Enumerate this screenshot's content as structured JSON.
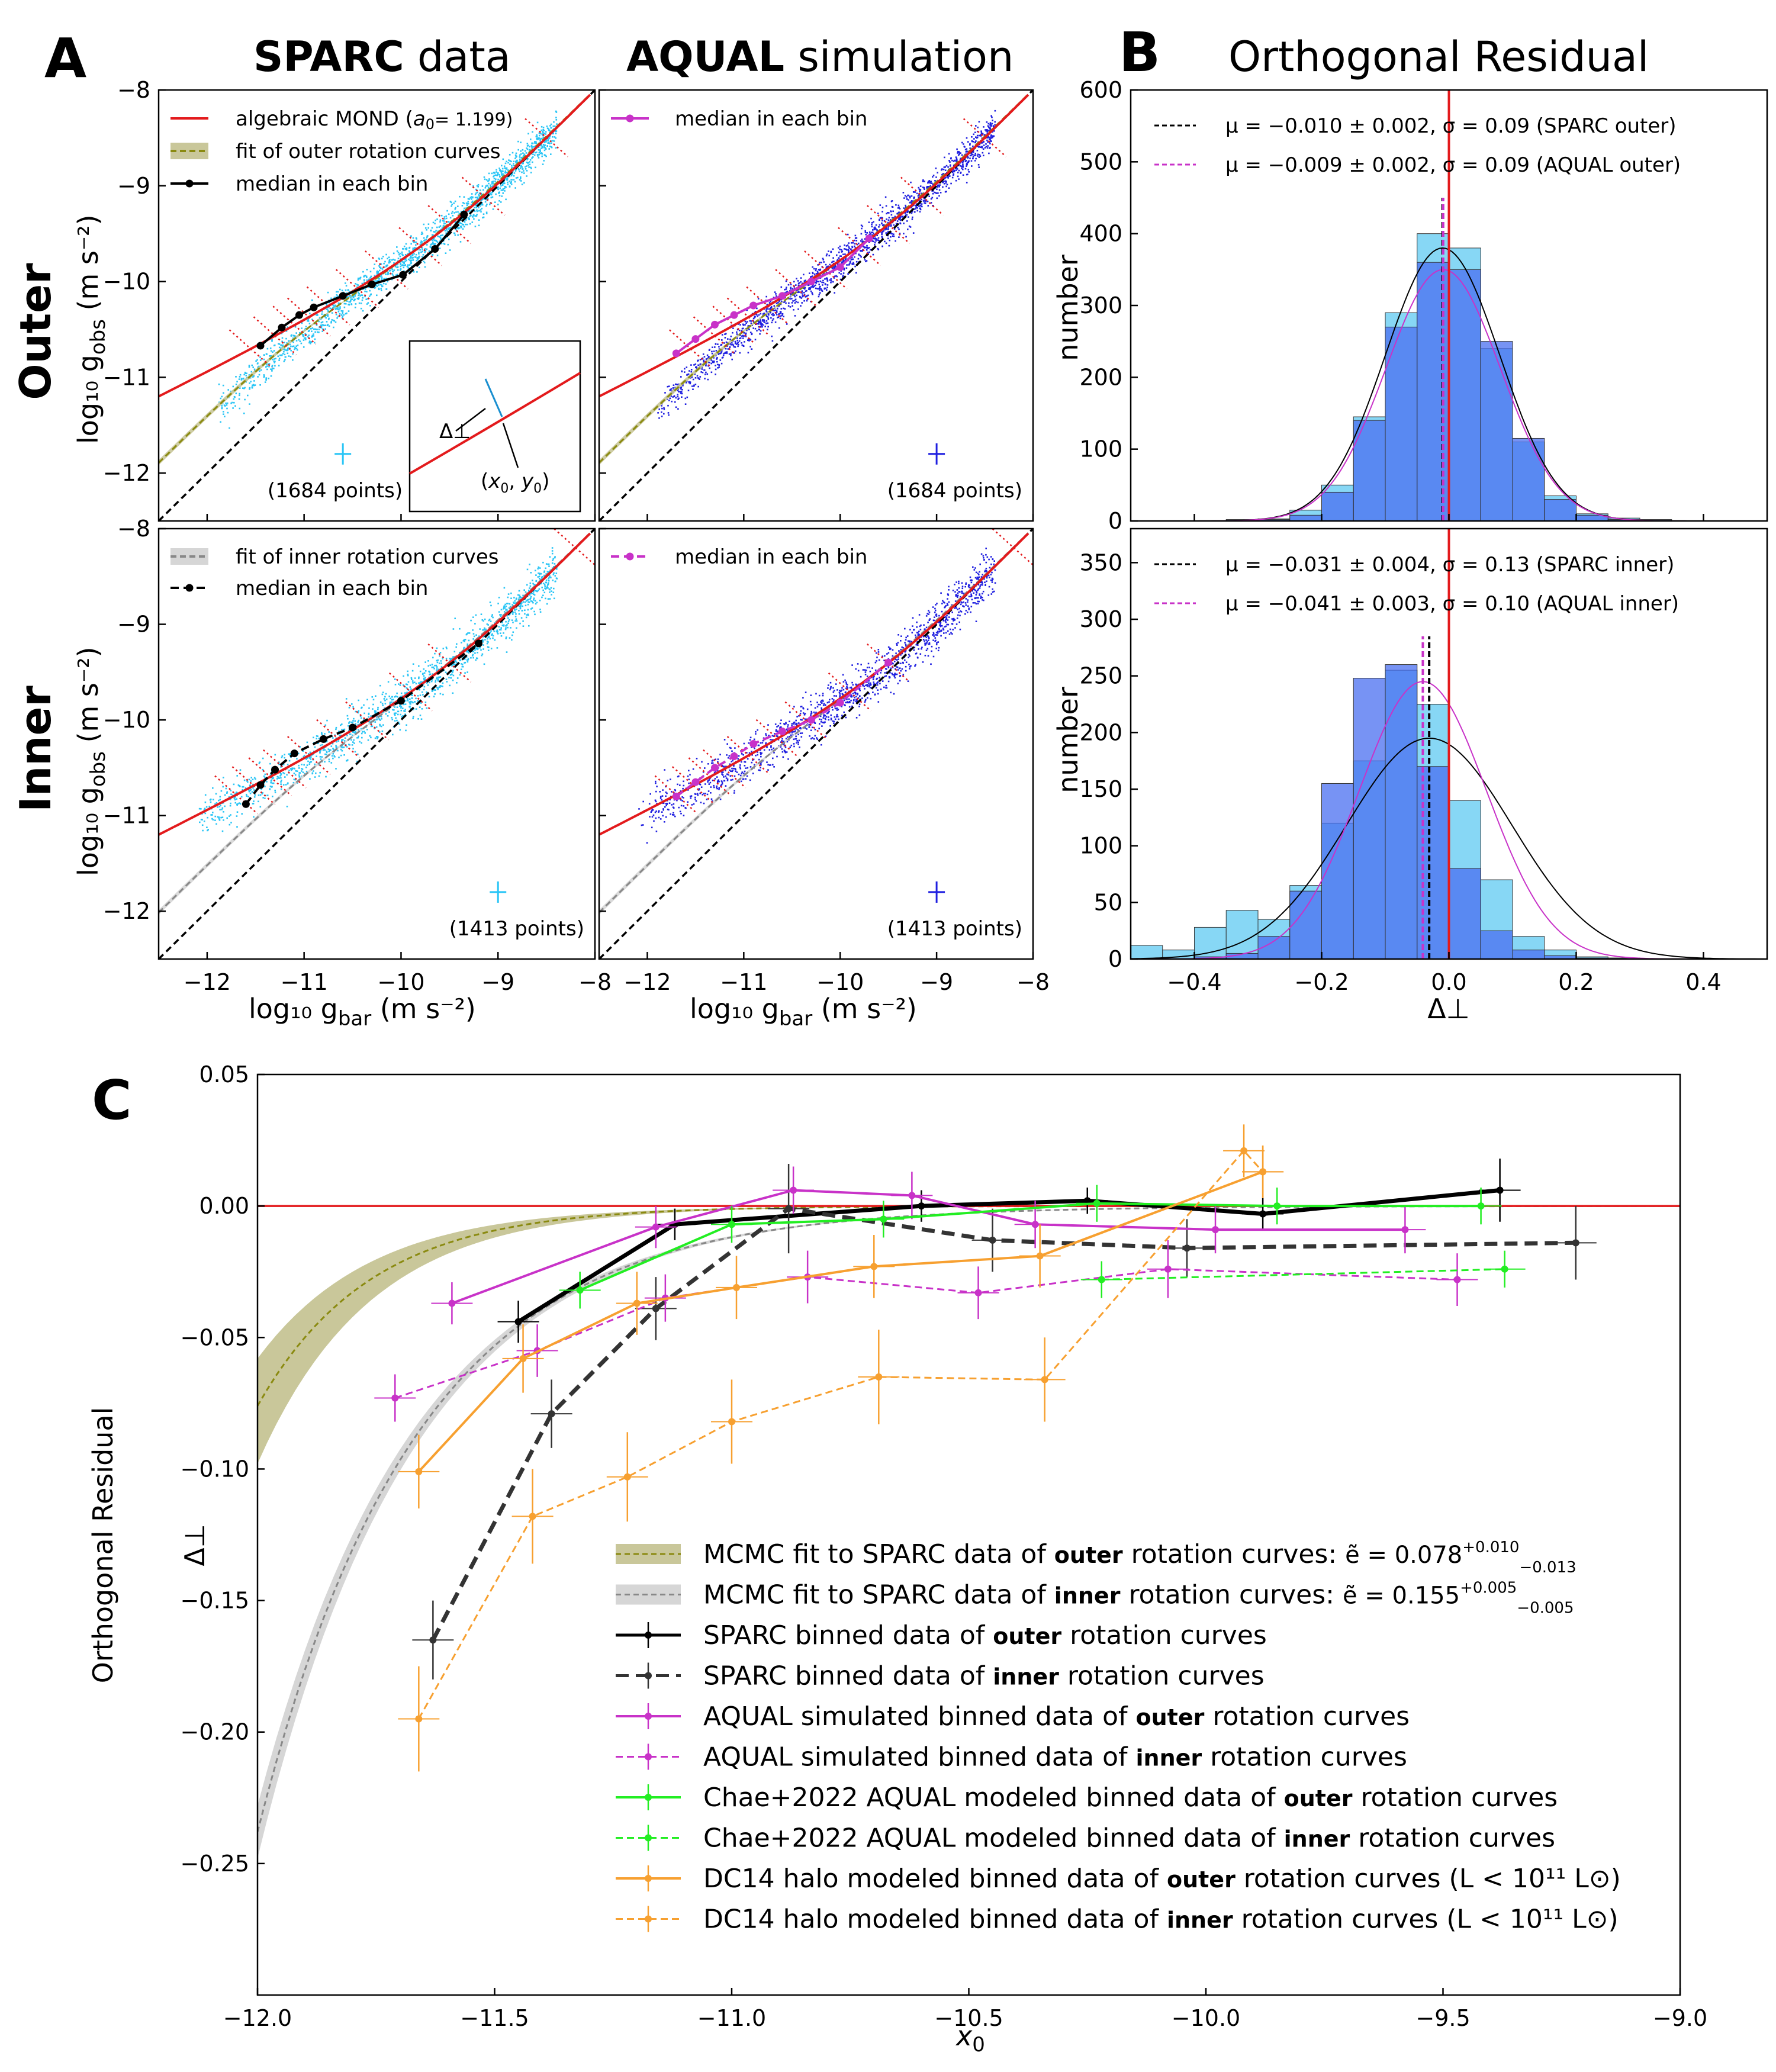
{
  "figure": {
    "panel_labels": [
      "A",
      "B",
      "C"
    ],
    "column_titles": {
      "sparc_bold": "SPARC",
      "sparc_rest": " data",
      "aqual_bold": "AQUAL",
      "aqual_rest": " simulation"
    },
    "row_titles": [
      "Outer",
      "Inner"
    ],
    "panelB_title": "Orthogonal Residual"
  },
  "colors": {
    "mond": "#e31a1c",
    "sparc_points": "#29c5f6",
    "aqual_points": "#1f1fe0",
    "median_aqual": "#c832c8",
    "outer_fit": "#8a8a10",
    "outer_band": "#c9c79a",
    "inner_fit": "#888888",
    "inner_band": "#d6d6d6",
    "hist_sparc": "#87d7f5",
    "hist_aqual": "#4a6ff0",
    "chae": "#22ee22",
    "dc14": "#f7a030",
    "black": "#000000"
  },
  "chart_data": [
    {
      "id": "A",
      "type": "scatter",
      "title": "SPARC data / AQUAL simulation (Outer & Inner)",
      "xlabel": "log10 g_bar (m s^-2)",
      "ylabel": "log10 g_obs (m s^-2)",
      "xlim": [
        -12.5,
        -8.0
      ],
      "ylim": [
        -12.5,
        -8.0
      ],
      "xticks": [
        "-12",
        "-11",
        "-10",
        "-9",
        "-8"
      ],
      "yticks": [
        "-8",
        "-9",
        "-10",
        "-11",
        "-12"
      ],
      "legend_outer_sparc": [
        "algebraic MOND (a0 = 1.199)",
        "fit of outer rotation curves",
        "median in each bin"
      ],
      "legend_inner_sparc": [
        "fit of inner rotation curves",
        "median in each bin"
      ],
      "legend_aqual": [
        "median in each bin"
      ],
      "point_counts": {
        "outer": "(1684 points)",
        "inner": "(1413 points)"
      },
      "inset_labels": [
        "Δ⊥",
        "(x0, y0)"
      ],
      "median_outer_sparc": {
        "x": [
          -11.45,
          -11.23,
          -11.05,
          -10.9,
          -10.6,
          -10.3,
          -9.98,
          -9.65,
          -9.35
        ],
        "y": [
          -10.67,
          -10.48,
          -10.35,
          -10.27,
          -10.15,
          -10.03,
          -9.93,
          -9.66,
          -9.3
        ]
      },
      "median_inner_sparc": {
        "x": [
          -11.6,
          -11.45,
          -11.3,
          -11.1,
          -10.8,
          -10.5,
          -10.0,
          -9.2
        ],
        "y": [
          -10.88,
          -10.68,
          -10.52,
          -10.35,
          -10.2,
          -10.08,
          -9.8,
          -9.2
        ]
      },
      "median_outer_aqual": {
        "x": [
          -11.7,
          -11.5,
          -11.3,
          -11.1,
          -10.9,
          -10.6,
          -10.3,
          -10.0,
          -9.7
        ],
        "y": [
          -10.75,
          -10.6,
          -10.45,
          -10.35,
          -10.25,
          -10.15,
          -10.0,
          -9.85,
          -9.55
        ]
      },
      "median_inner_aqual": {
        "x": [
          -11.7,
          -11.5,
          -11.3,
          -11.1,
          -10.9,
          -10.6,
          -10.3,
          -10.0,
          -9.5
        ],
        "y": [
          -10.8,
          -10.65,
          -10.5,
          -10.38,
          -10.25,
          -10.12,
          -10.0,
          -9.82,
          -9.4
        ]
      }
    },
    {
      "id": "B_outer",
      "type": "bar",
      "xlabel": "Δ⊥",
      "ylabel": "number",
      "xlim": [
        -0.5,
        0.5
      ],
      "ylim": [
        0,
        600
      ],
      "yticks": [
        "0",
        "100",
        "200",
        "300",
        "400",
        "500",
        "600"
      ],
      "legend": [
        "μ = −0.010 ± 0.002, σ = 0.09 (SPARC outer)",
        "μ = −0.009 ± 0.002, σ = 0.09 (AQUAL outer)"
      ],
      "bin_edges_start": -0.4,
      "bin_width": 0.05,
      "series": [
        {
          "name": "SPARC outer",
          "values": [
            0,
            2,
            3,
            15,
            50,
            145,
            290,
            400,
            380,
            240,
            110,
            35,
            10,
            4,
            2,
            0
          ]
        },
        {
          "name": "AQUAL outer",
          "values": [
            0,
            1,
            2,
            8,
            40,
            140,
            270,
            360,
            350,
            250,
            115,
            30,
            8,
            2,
            1,
            0
          ]
        }
      ],
      "gaussian": {
        "mu": -0.01,
        "sigma": 0.09,
        "amp": 380
      },
      "gaussian2": {
        "mu": -0.009,
        "sigma": 0.09,
        "amp": 350
      }
    },
    {
      "id": "B_inner",
      "type": "bar",
      "xlabel": "Δ⊥",
      "ylabel": "number",
      "xlim": [
        -0.5,
        0.5
      ],
      "ylim": [
        0,
        380
      ],
      "xticks": [
        "−0.4",
        "−0.2",
        "0.0",
        "0.2",
        "0.4"
      ],
      "yticks": [
        "0",
        "50",
        "100",
        "150",
        "200",
        "250",
        "300",
        "350"
      ],
      "legend": [
        "μ = −0.031 ± 0.004, σ = 0.13 (SPARC inner)",
        "μ = −0.041 ± 0.003, σ = 0.10 (AQUAL inner)"
      ],
      "bin_start": -0.5,
      "bin_width": 0.05,
      "series": [
        {
          "name": "SPARC inner",
          "values": [
            12,
            8,
            28,
            43,
            35,
            65,
            120,
            175,
            255,
            225,
            140,
            70,
            20,
            8,
            2,
            1,
            0,
            0,
            0,
            0
          ]
        },
        {
          "name": "AQUAL inner",
          "values": [
            0,
            0,
            2,
            5,
            20,
            60,
            155,
            248,
            260,
            170,
            80,
            25,
            8,
            3,
            1,
            0,
            0,
            0,
            0,
            0
          ]
        }
      ],
      "gaussian": {
        "mu": -0.031,
        "sigma": 0.13,
        "amp": 195
      },
      "gaussian2": {
        "mu": -0.041,
        "sigma": 0.1,
        "amp": 245
      }
    },
    {
      "id": "C",
      "type": "line",
      "xlabel": "x0",
      "ylabel": "Orthogonal Residual Δ⊥",
      "xlim": [
        -12.0,
        -9.0
      ],
      "ylim": [
        -0.3,
        0.05
      ],
      "xticks": [
        "−12.0",
        "−11.5",
        "−11.0",
        "−10.5",
        "−10.0",
        "−9.5",
        "−9.0"
      ],
      "yticks": [
        "0.05",
        "0.00",
        "−0.05",
        "−0.10",
        "−0.15",
        "−0.20",
        "−0.25"
      ],
      "legend": [
        "MCMC fit to SPARC data of outer rotation curves: ẽ = 0.078 (+0.010/−0.013)",
        "MCMC fit to SPARC data of inner rotation curves: ẽ = 0.155 (+0.005/−0.005)",
        "SPARC binned data of outer rotation curves",
        "SPARC binned data of inner rotation curves",
        "AQUAL simulated binned data of outer rotation curves",
        "AQUAL simulated binned data of inner rotation curves",
        "Chae+2022 AQUAL modeled binned data of outer rotation curves",
        "Chae+2022 AQUAL modeled binned data of inner rotation curves",
        "DC14 halo modeled binned data of outer rotation curves (L < 10^11 L⊙)",
        "DC14 halo modeled binned data of inner rotation curves (L < 10^11 L⊙)"
      ],
      "series": [
        {
          "name": "SPARC outer",
          "x": [
            -11.45,
            -11.12,
            -10.6,
            -10.25,
            -9.88,
            -9.38
          ],
          "y": [
            -0.044,
            -0.007,
            0.0,
            0.002,
            -0.003,
            0.006
          ],
          "err": [
            0.008,
            0.006,
            0.006,
            0.005,
            0.006,
            0.012
          ]
        },
        {
          "name": "SPARC inner",
          "x": [
            -11.63,
            -11.38,
            -11.16,
            -10.88,
            -10.45,
            -10.04,
            -9.22
          ],
          "y": [
            -0.165,
            -0.079,
            -0.039,
            -0.001,
            -0.013,
            -0.016,
            -0.014
          ],
          "err": [
            0.015,
            0.013,
            0.012,
            0.017,
            0.012,
            0.011,
            0.014
          ]
        },
        {
          "name": "AQUAL outer",
          "x": [
            -11.59,
            -11.16,
            -10.87,
            -10.62,
            -10.36,
            -9.98,
            -9.58
          ],
          "y": [
            -0.037,
            -0.008,
            0.006,
            0.004,
            -0.007,
            -0.009,
            -0.009
          ],
          "err": [
            0.008,
            0.008,
            0.009,
            0.009,
            0.009,
            0.009,
            0.009
          ]
        },
        {
          "name": "AQUAL inner",
          "x": [
            -11.71,
            -11.41,
            -11.14,
            -10.84,
            -10.48,
            -10.08,
            -9.47
          ],
          "y": [
            -0.073,
            -0.055,
            -0.035,
            -0.027,
            -0.033,
            -0.024,
            -0.028
          ],
          "err": [
            0.009,
            0.01,
            0.009,
            0.01,
            0.01,
            0.011,
            0.01
          ]
        },
        {
          "name": "Chae outer",
          "x": [
            -11.32,
            -11.0,
            -10.68,
            -10.23,
            -9.85,
            -9.42
          ],
          "y": [
            -0.032,
            -0.007,
            -0.005,
            0.001,
            0.0,
            0.0
          ],
          "err": [
            0.007,
            0.007,
            0.007,
            0.007,
            0.007,
            0.007
          ]
        },
        {
          "name": "Chae inner",
          "x": [
            -10.22,
            -9.37
          ],
          "y": [
            -0.028,
            -0.024
          ],
          "err": [
            0.007,
            0.007
          ]
        },
        {
          "name": "DC14 outer",
          "x": [
            -11.66,
            -11.44,
            -11.2,
            -10.99,
            -10.7,
            -10.35,
            -9.88
          ],
          "y": [
            -0.101,
            -0.058,
            -0.037,
            -0.031,
            -0.023,
            -0.019,
            0.013
          ],
          "err": [
            0.014,
            0.013,
            0.012,
            0.012,
            0.012,
            0.012,
            0.01
          ]
        },
        {
          "name": "DC14 inner",
          "x": [
            -11.66,
            -11.42,
            -11.22,
            -11.0,
            -10.69,
            -10.34,
            -9.92,
            -9.88
          ],
          "y": [
            -0.195,
            -0.118,
            -0.103,
            -0.082,
            -0.065,
            -0.066,
            0.021,
            0.013
          ],
          "err": [
            0.02,
            0.018,
            0.017,
            0.016,
            0.018,
            0.016,
            0.01,
            0.01
          ]
        }
      ],
      "fits": [
        {
          "name": "MCMC outer",
          "e": 0.078,
          "e_lo": 0.065,
          "e_hi": 0.088
        },
        {
          "name": "MCMC inner",
          "e": 0.155,
          "e_lo": 0.15,
          "e_hi": 0.16
        }
      ]
    }
  ],
  "text": {
    "A_label": "A",
    "B_label": "B",
    "C_label": "C",
    "A_xlabel": "log₁₀ g",
    "A_xlabel_sub": "bar",
    "A_xlabel_units": "(m s⁻²)",
    "A_ylabel": "log₁₀ g",
    "A_ylabel_sub": "obs",
    "A_ylabel_units": "(m s⁻²)",
    "B_ylabel": "number",
    "B_xlabel": "Δ⊥",
    "C_xlabel": "x₀",
    "C_ylabel1": "Orthogonal Residual",
    "C_ylabel2": "Δ⊥",
    "mcmc_outer_prefix": "MCMC fit to SPARC data of ",
    "mcmc_inner_prefix": "MCMC fit to SPARC data of ",
    "bold_outer": "outer",
    "bold_inner": "inner",
    "mcmc_suffix": " rotation curves: ",
    "e_outer_val": "ẽ = 0.078",
    "e_outer_sup": "+0.010",
    "e_outer_sub": "−0.013",
    "e_inner_val": "ẽ = 0.155",
    "e_inner_sup": "+0.005",
    "e_inner_sub": "−0.005",
    "rc_suffix": " rotation curves",
    "sparc_prefix": "SPARC binned data of ",
    "aqual_prefix": "AQUAL simulated binned data of ",
    "chae_prefix": "Chae+2022 AQUAL modeled binned data of ",
    "dc14_prefix": "DC14 halo modeled binned data of ",
    "dc14_suffix": " rotation curves (L < 10¹¹ L⊙)"
  }
}
